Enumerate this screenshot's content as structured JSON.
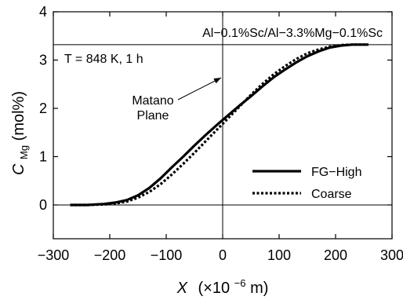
{
  "chart_data": {
    "type": "line",
    "title": "",
    "header_text": "Al−0.1%Sc/Al−3.3%Mg−0.1%Sc",
    "condition_text": "T = 848 K, 1 h",
    "xlabel": {
      "symbol": "X",
      "unit_prefix": "(×10",
      "unit_exp": "−6",
      "unit_suffix": " m)"
    },
    "ylabel": {
      "symbol": "C",
      "subscript": "Mg",
      "unit": " (mol%)"
    },
    "xlim": [
      -300,
      300
    ],
    "ylim": [
      -0.7,
      4
    ],
    "xticks": [
      -300,
      -200,
      -100,
      0,
      100,
      200,
      300
    ],
    "xtick_labels": [
      "−300",
      "−200",
      "−100",
      "0",
      "100",
      "200",
      "300"
    ],
    "yticks": [
      0,
      1,
      2,
      3,
      4
    ],
    "ytick_labels": [
      "0",
      "1",
      "2",
      "3",
      "4"
    ],
    "reference_lines": {
      "horizontal": [
        0,
        3.32
      ],
      "vertical": [
        0
      ]
    },
    "annotation": {
      "line1": "Matano",
      "line2": "Plane",
      "points_to_x": 0
    },
    "grid": false,
    "legend_position": "lower-right",
    "series": [
      {
        "name": "FG−High",
        "style": "solid",
        "color": "#000000",
        "x": [
          -270,
          -240,
          -210,
          -190,
          -170,
          -150,
          -130,
          -110,
          -90,
          -70,
          -50,
          -30,
          -10,
          0,
          10,
          30,
          50,
          70,
          90,
          110,
          130,
          150,
          170,
          190,
          210,
          230,
          258
        ],
        "y": [
          0.0,
          0.0,
          0.02,
          0.05,
          0.1,
          0.2,
          0.35,
          0.55,
          0.78,
          1.0,
          1.23,
          1.45,
          1.66,
          1.76,
          1.86,
          2.06,
          2.25,
          2.45,
          2.64,
          2.8,
          2.95,
          3.08,
          3.18,
          3.26,
          3.3,
          3.32,
          3.32
        ]
      },
      {
        "name": "Coarse",
        "style": "dotted",
        "color": "#000000",
        "x": [
          -270,
          -240,
          -210,
          -190,
          -170,
          -150,
          -130,
          -110,
          -90,
          -70,
          -50,
          -30,
          -10,
          0,
          10,
          30,
          50,
          70,
          90,
          110,
          130,
          150,
          170,
          190,
          210,
          230,
          258
        ],
        "y": [
          0.0,
          0.0,
          0.01,
          0.03,
          0.07,
          0.15,
          0.27,
          0.43,
          0.63,
          0.85,
          1.08,
          1.32,
          1.56,
          1.68,
          1.8,
          2.04,
          2.28,
          2.5,
          2.7,
          2.87,
          3.02,
          3.14,
          3.22,
          3.28,
          3.31,
          3.32,
          3.32
        ]
      }
    ]
  }
}
